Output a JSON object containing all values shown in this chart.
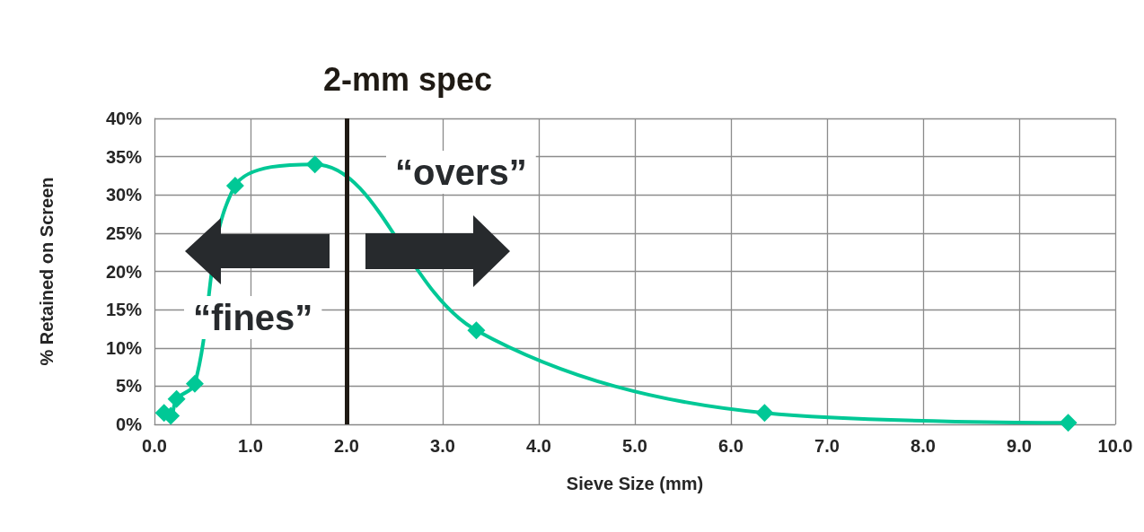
{
  "chart_data": {
    "type": "line",
    "xlabel": "Sieve Size (mm)",
    "ylabel": "% Retained on Screen",
    "x": [
      0.1,
      0.17,
      0.23,
      0.42,
      0.84,
      1.67,
      3.35,
      6.35,
      9.51
    ],
    "series": [
      {
        "color": "#00c896",
        "values": [
          1.5,
          1.1,
          3.3,
          5.3,
          31.2,
          34.0,
          12.3,
          1.5,
          0.2
        ]
      }
    ],
    "xlim": [
      0,
      10
    ],
    "xticks": [
      {
        "value": 0,
        "label": "0.0"
      },
      {
        "value": 1,
        "label": "1.0"
      },
      {
        "value": 2,
        "label": "2.0"
      },
      {
        "value": 3,
        "label": "3.0"
      },
      {
        "value": 4,
        "label": "4.0"
      },
      {
        "value": 5,
        "label": "5.0"
      },
      {
        "value": 6,
        "label": "6.0"
      },
      {
        "value": 7,
        "label": "7.0"
      },
      {
        "value": 8,
        "label": "8.0"
      },
      {
        "value": 9,
        "label": "9.0"
      },
      {
        "value": 10,
        "label": "10.0"
      }
    ],
    "ylim": [
      0,
      40
    ],
    "yticks": [
      {
        "value": 0,
        "label": "0%"
      },
      {
        "value": 5,
        "label": "5%"
      },
      {
        "value": 10,
        "label": "10%"
      },
      {
        "value": 15,
        "label": "15%"
      },
      {
        "value": 20,
        "label": "20%"
      },
      {
        "value": 25,
        "label": "25%"
      },
      {
        "value": 30,
        "label": "30%"
      },
      {
        "value": 35,
        "label": "35%"
      },
      {
        "value": 40,
        "label": "40%"
      }
    ],
    "ref_lines": [
      {
        "axis": "x",
        "value": 2,
        "label": "2-mm spec",
        "color": "#1f1a14"
      }
    ],
    "annotations": [
      "“fines”",
      "“overs”"
    ],
    "grid": true,
    "marker": "diamond",
    "line_style": "solid"
  }
}
